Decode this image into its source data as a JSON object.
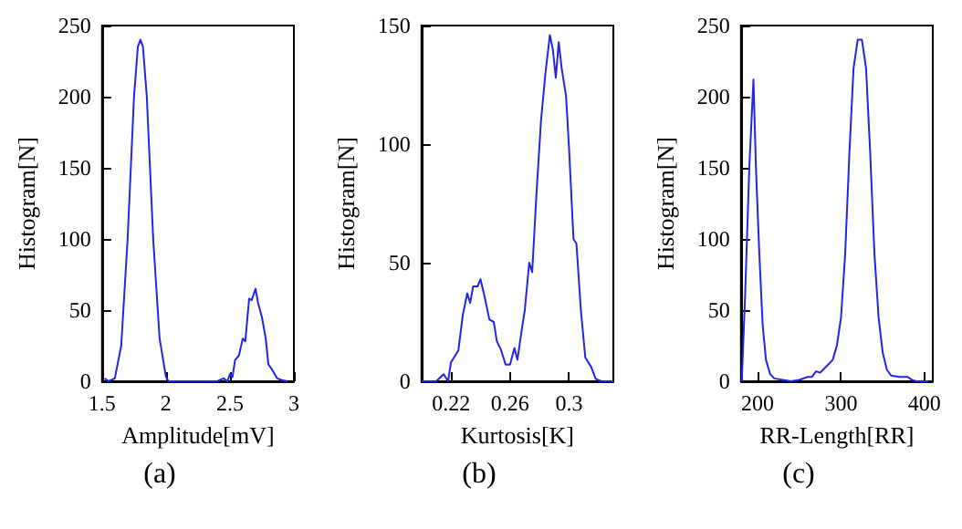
{
  "chart_data": [
    {
      "type": "line",
      "xlabel": "Amplitude[mV]",
      "ylabel": "Histogram[N]",
      "annotations": [
        "(a)"
      ],
      "color": "#2424e6",
      "xlim": [
        1.5,
        3
      ],
      "xticks": [
        1.5,
        2,
        2.5,
        3
      ],
      "ylim": [
        0,
        250
      ],
      "yticks": [
        0,
        50,
        100,
        150,
        200,
        250
      ],
      "grid": false,
      "x": [
        1.52,
        1.55,
        1.6,
        1.65,
        1.7,
        1.75,
        1.78,
        1.8,
        1.82,
        1.85,
        1.9,
        1.95,
        2.0,
        2.02,
        2.4,
        2.45,
        2.48,
        2.5,
        2.52,
        2.54,
        2.57,
        2.6,
        2.62,
        2.65,
        2.67,
        2.7,
        2.72,
        2.75,
        2.78,
        2.8,
        2.83,
        2.87,
        2.9,
        2.95
      ],
      "values": [
        2,
        0,
        2,
        25,
        100,
        200,
        235,
        240,
        235,
        200,
        100,
        30,
        3,
        0,
        0,
        2,
        0,
        5,
        3,
        15,
        18,
        30,
        28,
        58,
        57,
        65,
        55,
        45,
        30,
        12,
        8,
        2,
        1,
        0
      ]
    },
    {
      "type": "line",
      "xlabel": "Kurtosis[K]",
      "ylabel": "Histogram[N]",
      "annotations": [
        "(b)"
      ],
      "color": "#2424e6",
      "xlim": [
        0.2,
        0.33
      ],
      "xticks": [
        0.22,
        0.26,
        0.3
      ],
      "ylim": [
        0,
        150
      ],
      "yticks": [
        0,
        50,
        100,
        150
      ],
      "grid": false,
      "x": [
        0.2,
        0.21,
        0.215,
        0.218,
        0.22,
        0.225,
        0.228,
        0.231,
        0.233,
        0.235,
        0.238,
        0.24,
        0.243,
        0.246,
        0.249,
        0.251,
        0.254,
        0.257,
        0.26,
        0.263,
        0.265,
        0.268,
        0.27,
        0.273,
        0.275,
        0.278,
        0.281,
        0.284,
        0.287,
        0.289,
        0.291,
        0.293,
        0.295,
        0.298,
        0.3,
        0.303,
        0.305,
        0.308,
        0.311,
        0.315,
        0.318,
        0.322,
        0.33
      ],
      "values": [
        0,
        0,
        3,
        0,
        8,
        13,
        28,
        37,
        33,
        40,
        40,
        43,
        35,
        26,
        25,
        17,
        13,
        7,
        7,
        14,
        9,
        22,
        30,
        50,
        46,
        80,
        110,
        130,
        146,
        140,
        128,
        143,
        132,
        120,
        98,
        60,
        58,
        30,
        10,
        6,
        1,
        0,
        0
      ]
    },
    {
      "type": "line",
      "xlabel": "RR-Length[RR]",
      "ylabel": "Histogram[N]",
      "annotations": [
        "(c)"
      ],
      "color": "#2424e6",
      "xlim": [
        180,
        410
      ],
      "xticks": [
        200,
        300,
        400
      ],
      "ylim": [
        0,
        250
      ],
      "yticks": [
        0,
        50,
        100,
        150,
        200,
        250
      ],
      "grid": false,
      "x": [
        181,
        185,
        190,
        195,
        198,
        202,
        206,
        210,
        215,
        220,
        230,
        240,
        250,
        260,
        265,
        270,
        275,
        280,
        290,
        295,
        300,
        305,
        310,
        315,
        320,
        325,
        330,
        335,
        340,
        345,
        350,
        355,
        360,
        370,
        380,
        385,
        390,
        400,
        405
      ],
      "values": [
        0,
        60,
        150,
        212,
        150,
        90,
        40,
        15,
        5,
        2,
        1,
        0,
        1,
        3,
        3,
        7,
        6,
        9,
        15,
        25,
        45,
        90,
        160,
        220,
        240,
        240,
        220,
        160,
        90,
        45,
        20,
        8,
        4,
        3,
        3,
        1,
        0,
        0,
        0
      ]
    }
  ]
}
